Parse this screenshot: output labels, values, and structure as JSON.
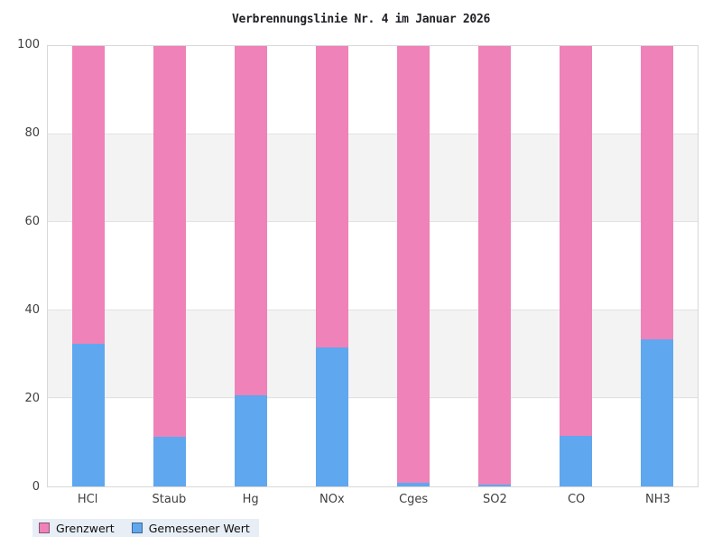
{
  "chart_data": {
    "type": "bar",
    "stacked": true,
    "title": "Verbrennungslinie Nr. 4 im Januar 2026",
    "categories": [
      "HCl",
      "Staub",
      "Hg",
      "NOx",
      "Cges",
      "SO2",
      "CO",
      "NH3"
    ],
    "series": [
      {
        "name": "Gemessener Wert",
        "color": "#5fa7ef",
        "values": [
          32.4,
          11.3,
          20.8,
          31.6,
          0.9,
          0.4,
          11.5,
          33.4
        ]
      },
      {
        "name": "Grenzwert",
        "color": "#ef82b8",
        "values": [
          67.6,
          88.7,
          79.2,
          68.4,
          99.1,
          99.6,
          88.5,
          66.6
        ]
      }
    ],
    "stack_order_bottom_to_top": [
      "Gemessener Wert",
      "Grenzwert"
    ],
    "xlabel": "",
    "ylabel": "",
    "ylim": [
      0,
      100
    ],
    "yticks": [
      0,
      20,
      40,
      60,
      80,
      100
    ],
    "grid": "alternating horizontal bands every 20 units",
    "band_colors": [
      "#ffffff",
      "#f3f3f3"
    ],
    "gridline_color": "#e2e2e2",
    "plot_border_color": "#d8d8d8",
    "legend_position": "bottom-left"
  },
  "legend": {
    "background": "#e7eef5",
    "items": [
      {
        "label": "Grenzwert",
        "color": "#ef82b8"
      },
      {
        "label": "Gemessener Wert",
        "color": "#5fa7ef"
      }
    ]
  }
}
